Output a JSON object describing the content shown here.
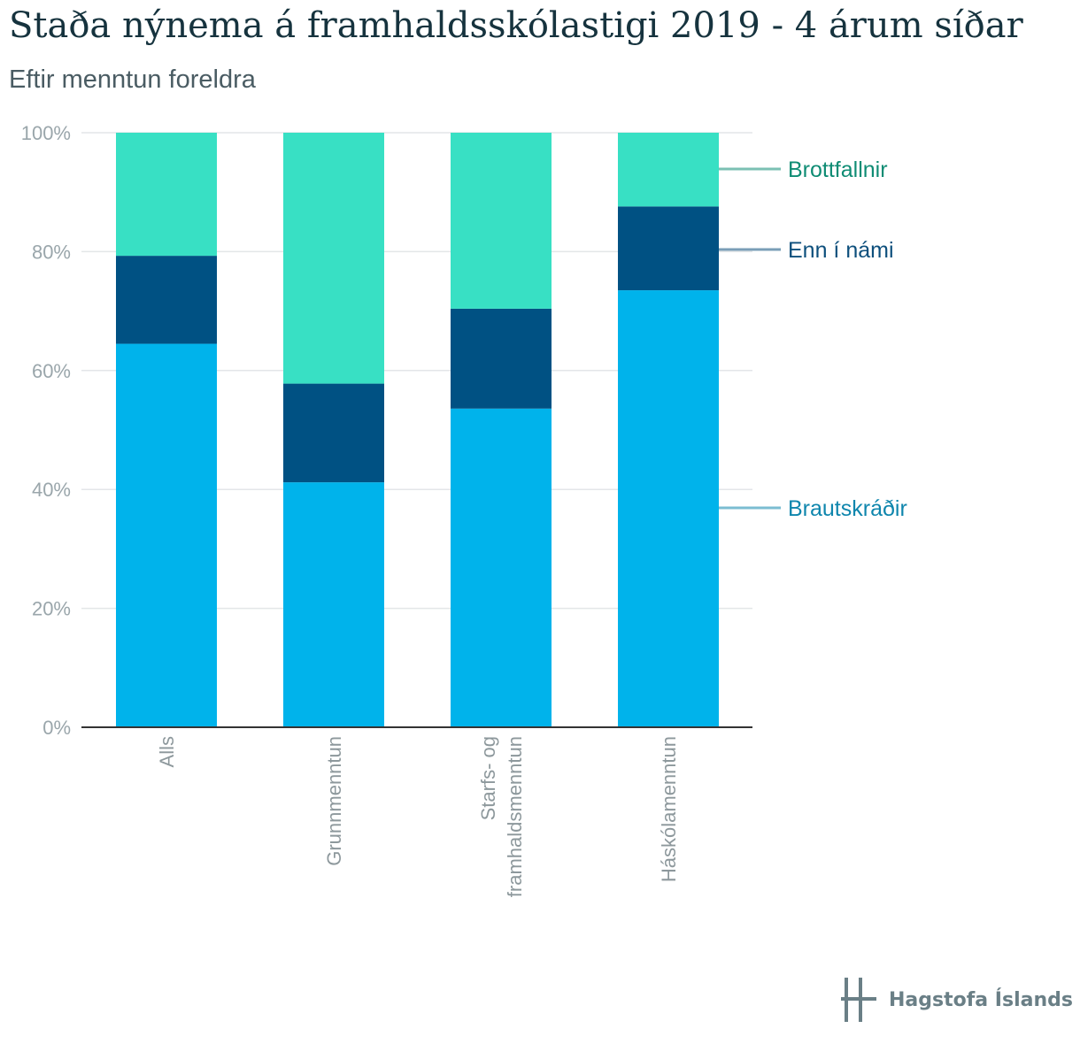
{
  "title": "Staða nýnema á framhaldsskólastigi 2019 - 4 árum síðar",
  "subtitle": "Eftir menntun foreldra",
  "logo_text": "Hagstofa Íslands",
  "chart_data": {
    "type": "bar",
    "stacked": true,
    "categories": [
      [
        "Alls"
      ],
      [
        "Grunnmenntun"
      ],
      [
        "Starfs- og",
        "framhaldsmenntun"
      ],
      [
        "Háskólamenntun"
      ]
    ],
    "series": [
      {
        "name": "Brautskráðir",
        "color": "#00b3eb",
        "label_color": "#0f86ad",
        "values": [
          64.5,
          41.2,
          53.6,
          73.5
        ]
      },
      {
        "name": "Enn í námi",
        "color": "#005183",
        "label_color": "#0d4f7c",
        "values": [
          14.8,
          16.6,
          16.8,
          14.1
        ]
      },
      {
        "name": "Brottfallnir",
        "color": "#38e0c4",
        "label_color": "#0f8c74",
        "values": [
          20.7,
          42.2,
          29.6,
          12.4
        ]
      }
    ],
    "ylim": [
      0,
      100
    ],
    "yticks": [
      "0%",
      "20%",
      "40%",
      "60%",
      "80%",
      "100%"
    ],
    "xlabel": "",
    "ylabel": "",
    "grid": true,
    "legend": "right"
  }
}
